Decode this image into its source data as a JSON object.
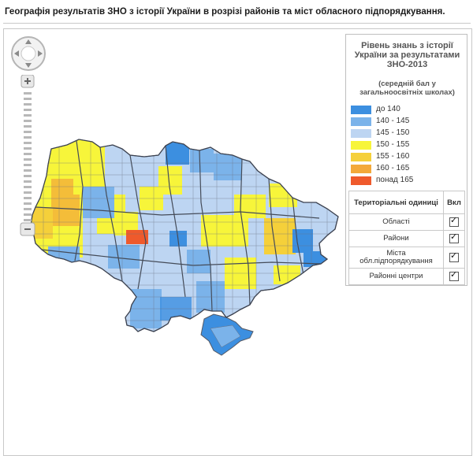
{
  "page": {
    "title": "Географія результатів ЗНО з історії України в розрізі районів та міст обласного підпорядкування."
  },
  "legend": {
    "title": "Рівень знань з історії України за результатами ЗНО-2013",
    "subtitle": "(середній бал у загальноосвітніх школах)",
    "items": [
      {
        "label": "до 140",
        "color": "#3c8fe0"
      },
      {
        "label": "140 - 145",
        "color": "#7bb3ea"
      },
      {
        "label": "145 - 150",
        "color": "#bdd5f2"
      },
      {
        "label": "150 - 155",
        "color": "#f7f53a"
      },
      {
        "label": "155 - 160",
        "color": "#f5d03a"
      },
      {
        "label": "160 - 165",
        "color": "#f3a93a"
      },
      {
        "label": "понад 165",
        "color": "#ef5a2c"
      }
    ]
  },
  "layers": {
    "header_name": "Територіальні одиниці",
    "header_toggle": "Вкл",
    "rows": [
      {
        "label": "Області",
        "checked": true
      },
      {
        "label": "Райони",
        "checked": true
      },
      {
        "label": "Міста обл.підпорядкування",
        "checked": true
      },
      {
        "label": "Районні центри",
        "checked": true
      }
    ]
  },
  "map": {
    "border_color": "#555a66",
    "colors": {
      "to140": "#3c8fe0",
      "140_145": "#7bb3ea",
      "145_150": "#bdd5f2",
      "150_155": "#f7f53a",
      "155_160": "#f5d03a",
      "160_165": "#f3a93a",
      "over165": "#ef5a2c"
    }
  }
}
